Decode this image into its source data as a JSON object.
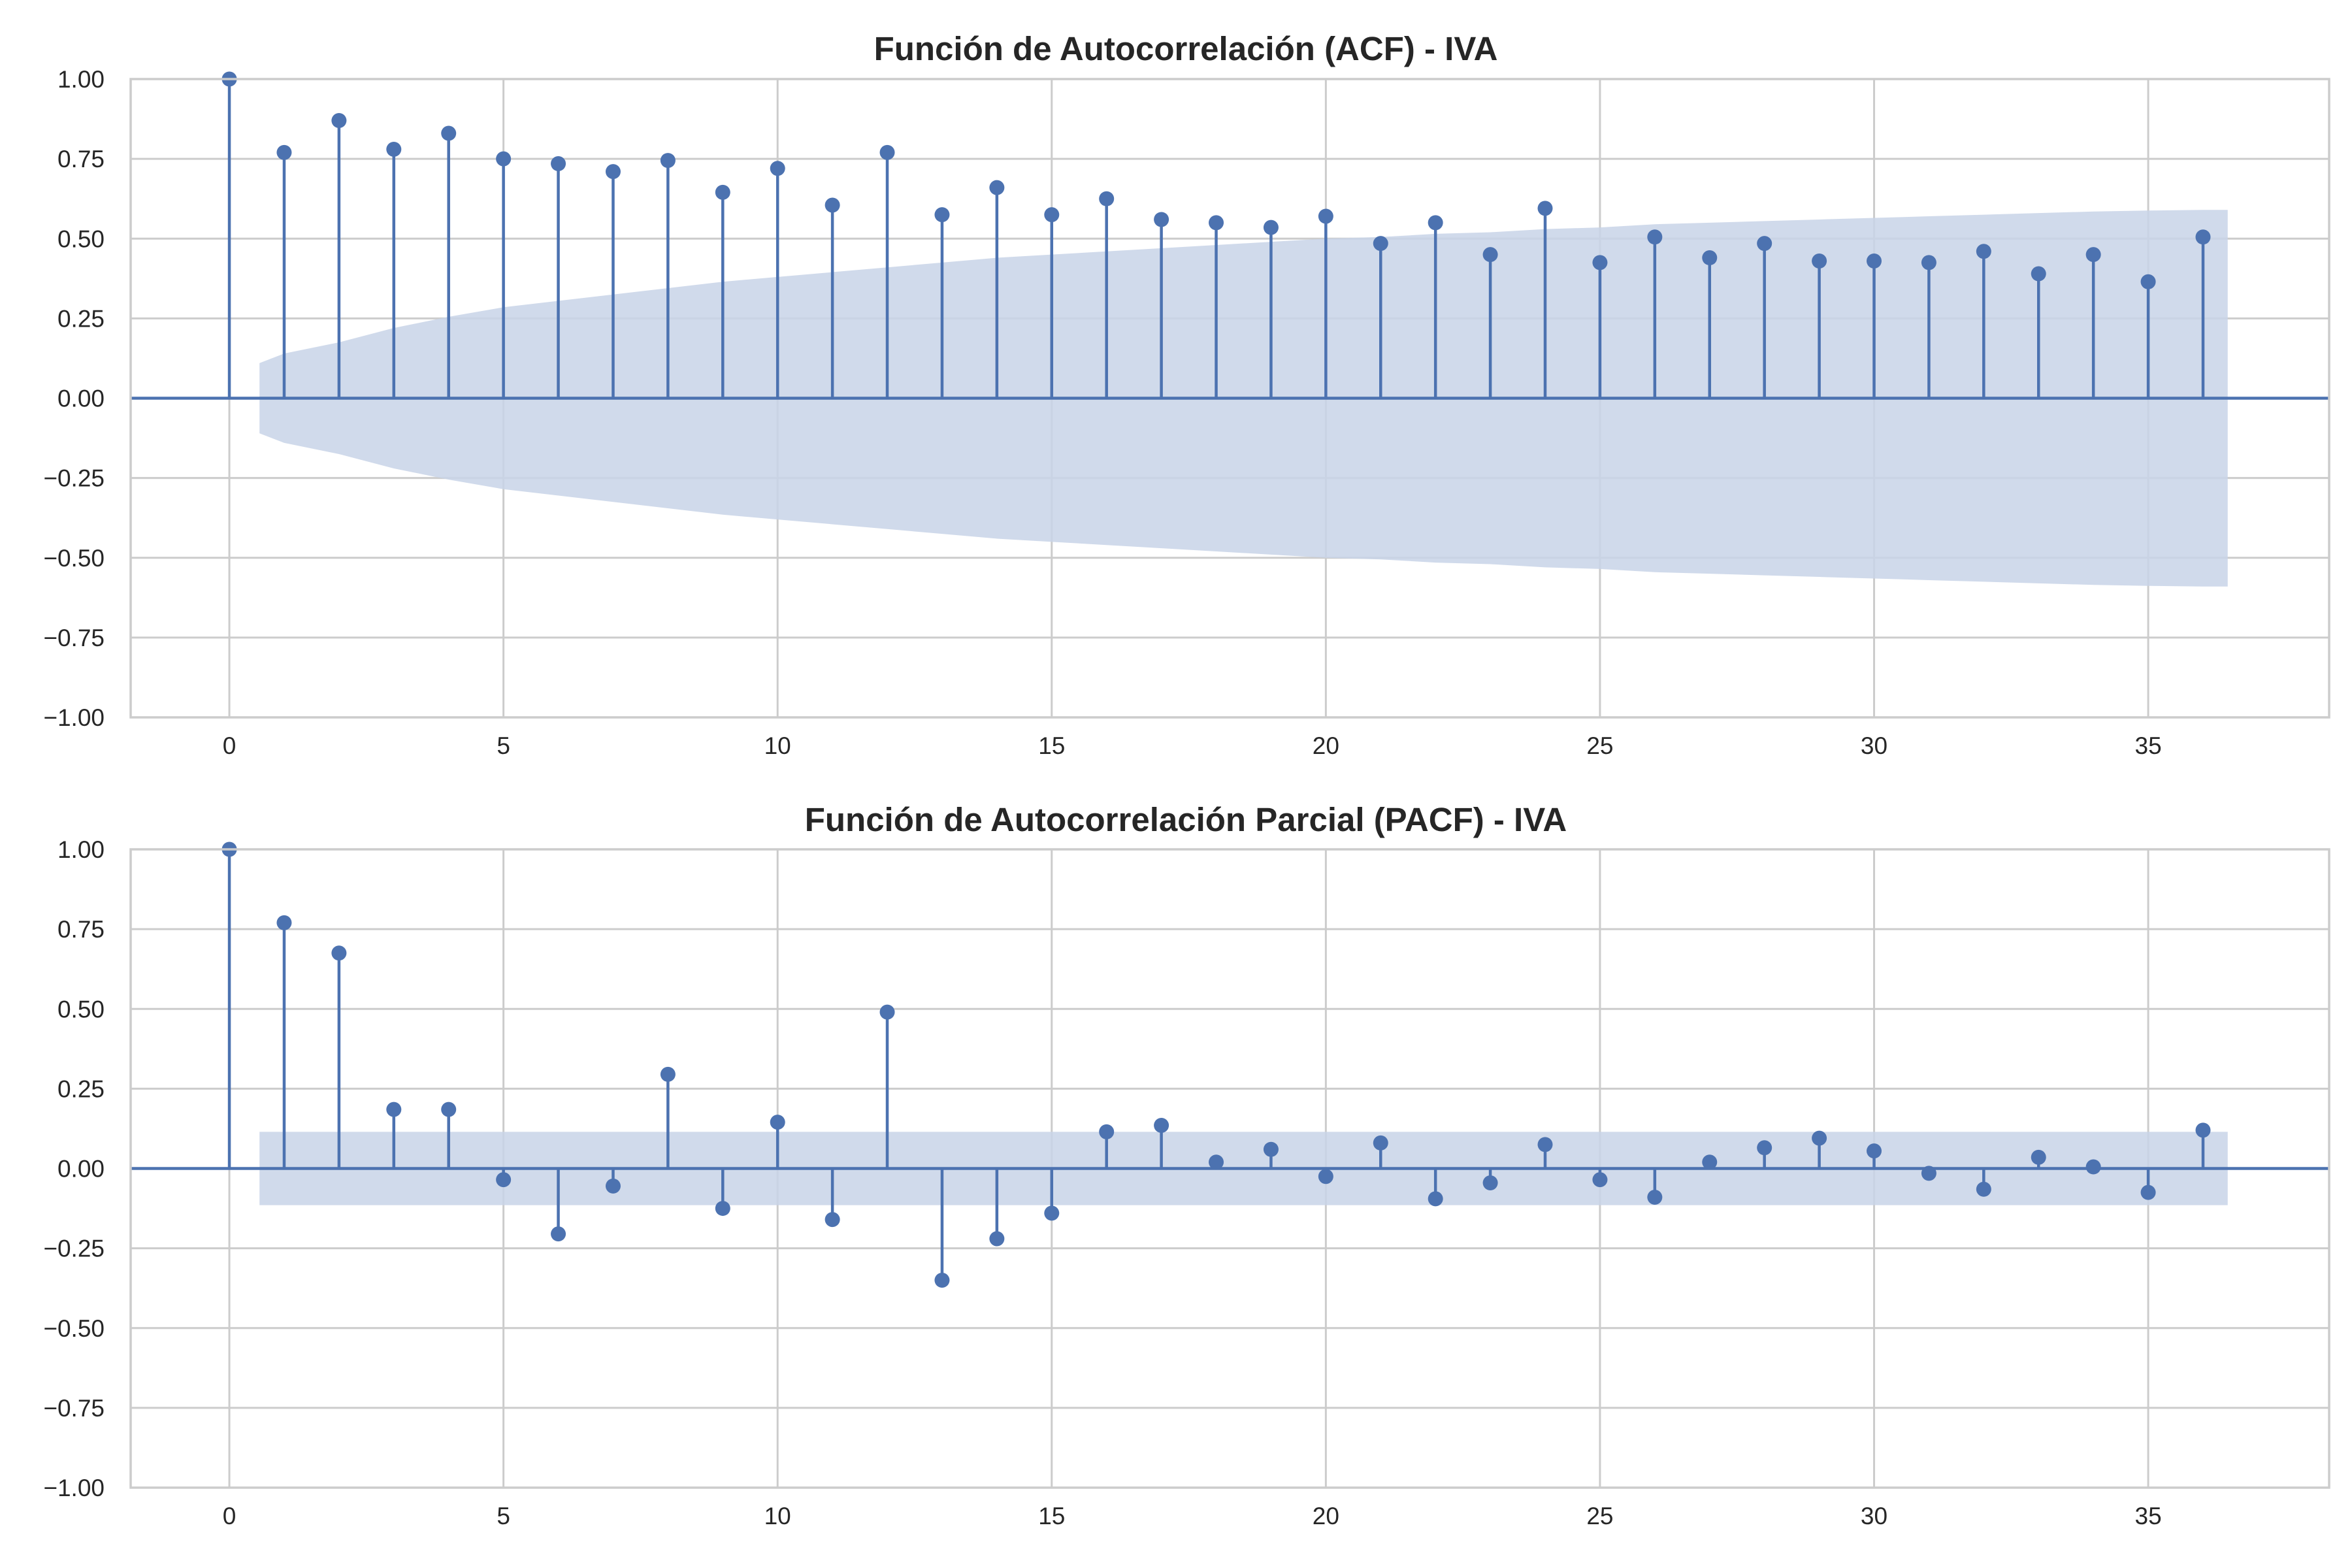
{
  "chart_data": [
    {
      "type": "stem",
      "title": "Función de Autocorrelación (ACF) - IVA",
      "xlim": [
        -1.8,
        38.3
      ],
      "ylim": [
        -1.0,
        1.0
      ],
      "xticks": [
        0,
        5,
        10,
        15,
        20,
        25,
        30,
        35
      ],
      "yticks": [
        1.0,
        0.75,
        0.5,
        0.25,
        0.0,
        -0.25,
        -0.5,
        -0.75,
        -1.0
      ],
      "ytick_labels": [
        "1.00",
        "0.75",
        "0.50",
        "0.25",
        "0.00",
        "−0.25",
        "−0.50",
        "−0.75",
        "−1.00"
      ],
      "grid": true,
      "lags": [
        0,
        1,
        2,
        3,
        4,
        5,
        6,
        7,
        8,
        9,
        10,
        11,
        12,
        13,
        14,
        15,
        16,
        17,
        18,
        19,
        20,
        21,
        22,
        23,
        24,
        25,
        26,
        27,
        28,
        29,
        30,
        31,
        32,
        33,
        34,
        35,
        36
      ],
      "values": [
        1.0,
        0.77,
        0.87,
        0.78,
        0.83,
        0.75,
        0.735,
        0.71,
        0.745,
        0.645,
        0.72,
        0.605,
        0.77,
        0.575,
        0.66,
        0.575,
        0.625,
        0.56,
        0.55,
        0.535,
        0.57,
        0.485,
        0.55,
        0.45,
        0.595,
        0.425,
        0.505,
        0.44,
        0.485,
        0.43,
        0.43,
        0.425,
        0.46,
        0.39,
        0.45,
        0.365,
        0.505
      ],
      "confint_x": [
        0.55,
        1,
        2,
        3,
        4,
        5,
        6,
        7,
        8,
        9,
        10,
        11,
        12,
        13,
        14,
        15,
        16,
        17,
        18,
        19,
        20,
        21,
        22,
        23,
        24,
        25,
        26,
        27,
        28,
        29,
        30,
        31,
        32,
        33,
        34,
        35,
        36,
        36.45
      ],
      "confint_upper": [
        0.11,
        0.14,
        0.175,
        0.22,
        0.255,
        0.285,
        0.305,
        0.325,
        0.345,
        0.365,
        0.38,
        0.395,
        0.41,
        0.425,
        0.44,
        0.45,
        0.46,
        0.47,
        0.48,
        0.49,
        0.5,
        0.505,
        0.515,
        0.52,
        0.53,
        0.535,
        0.545,
        0.55,
        0.555,
        0.56,
        0.565,
        0.57,
        0.575,
        0.58,
        0.585,
        0.588,
        0.59,
        0.59
      ],
      "color": "#4c72b0",
      "band_color": "#c8d3e8"
    },
    {
      "type": "stem",
      "title": "Función de Autocorrelación Parcial (PACF) - IVA",
      "xlim": [
        -1.8,
        38.3
      ],
      "ylim": [
        -1.0,
        1.0
      ],
      "xticks": [
        0,
        5,
        10,
        15,
        20,
        25,
        30,
        35
      ],
      "yticks": [
        1.0,
        0.75,
        0.5,
        0.25,
        0.0,
        -0.25,
        -0.5,
        -0.75,
        -1.0
      ],
      "ytick_labels": [
        "1.00",
        "0.75",
        "0.50",
        "0.25",
        "0.00",
        "−0.25",
        "−0.50",
        "−0.75",
        "−1.00"
      ],
      "grid": true,
      "lags": [
        0,
        1,
        2,
        3,
        4,
        5,
        6,
        7,
        8,
        9,
        10,
        11,
        12,
        13,
        14,
        15,
        16,
        17,
        18,
        19,
        20,
        21,
        22,
        23,
        24,
        25,
        26,
        27,
        28,
        29,
        30,
        31,
        32,
        33,
        34,
        35,
        36
      ],
      "values": [
        1.0,
        0.77,
        0.675,
        0.185,
        0.185,
        -0.035,
        -0.205,
        -0.055,
        0.295,
        -0.125,
        0.145,
        -0.16,
        0.49,
        -0.35,
        -0.22,
        -0.14,
        0.115,
        0.135,
        0.02,
        0.06,
        -0.025,
        0.08,
        -0.095,
        -0.045,
        0.075,
        -0.035,
        -0.09,
        0.02,
        0.065,
        0.095,
        0.055,
        -0.015,
        -0.065,
        0.035,
        0.005,
        -0.075,
        0.12
      ],
      "confint_x": [
        0.55,
        36.45
      ],
      "confint_upper": [
        0.115,
        0.115
      ],
      "color": "#4c72b0",
      "band_color": "#c8d3e8"
    }
  ]
}
